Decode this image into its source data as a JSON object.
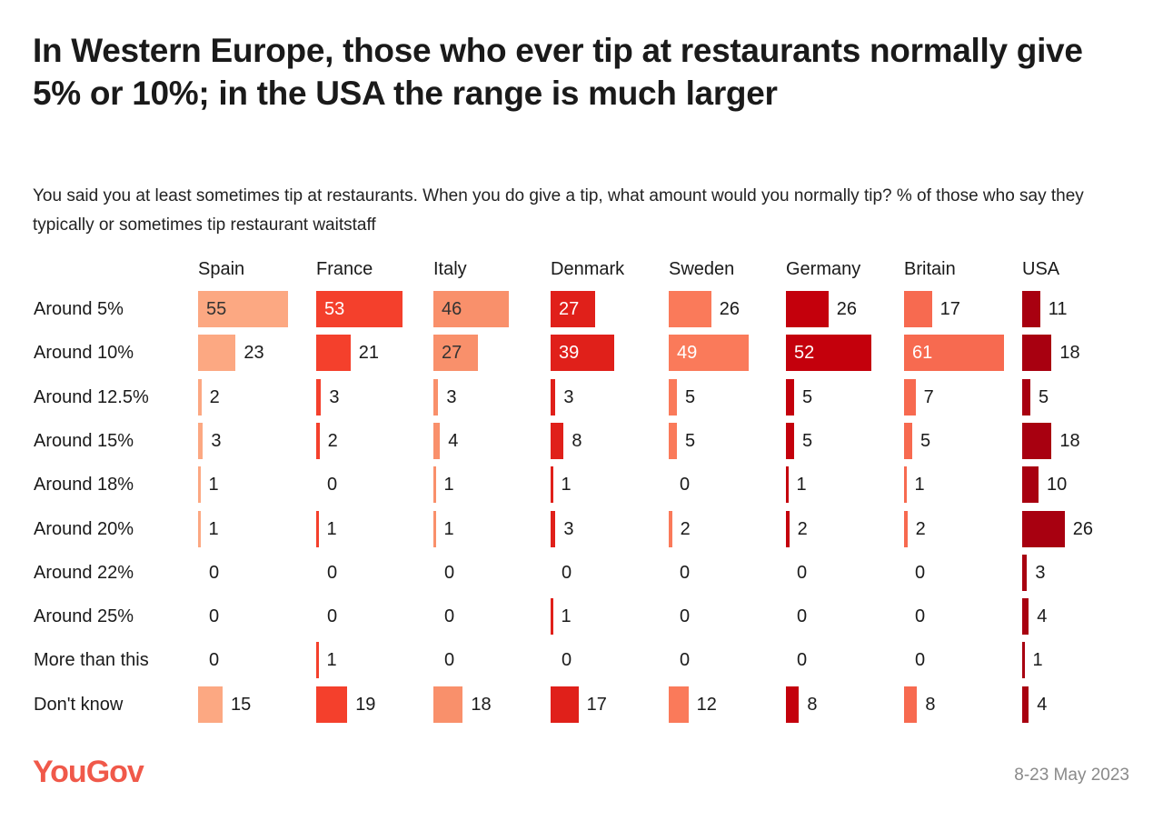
{
  "chart_data": {
    "type": "bar",
    "title": "In Western Europe, those who ever tip at restaurants normally give 5% or 10%; in the USA the range is much larger",
    "subtitle": "You said you at least sometimes tip at restaurants. When you do give a tip, what amount would you normally tip? % of those who say they typically or sometimes tip restaurant waitstaff",
    "categories": [
      "Around 5%",
      "Around 10%",
      "Around 12.5%",
      "Around 15%",
      "Around 18%",
      "Around 20%",
      "Around 22%",
      "Around 25%",
      "More than this",
      "Don't know"
    ],
    "series": [
      {
        "name": "Spain",
        "color": "#fca882",
        "text_inside": "#333333",
        "values": [
          55,
          23,
          2,
          3,
          1,
          1,
          0,
          0,
          0,
          15
        ]
      },
      {
        "name": "France",
        "color": "#f4402c",
        "text_inside": "#ffffff",
        "values": [
          53,
          21,
          3,
          2,
          0,
          1,
          0,
          0,
          1,
          19
        ]
      },
      {
        "name": "Italy",
        "color": "#f9906b",
        "text_inside": "#333333",
        "values": [
          46,
          27,
          3,
          4,
          1,
          1,
          0,
          0,
          0,
          18
        ]
      },
      {
        "name": "Denmark",
        "color": "#e0201a",
        "text_inside": "#ffffff",
        "values": [
          27,
          39,
          3,
          8,
          1,
          3,
          0,
          1,
          0,
          17
        ]
      },
      {
        "name": "Sweden",
        "color": "#fa7a5a",
        "text_inside": "#ffffff",
        "values": [
          26,
          49,
          5,
          5,
          0,
          2,
          0,
          0,
          0,
          12
        ]
      },
      {
        "name": "Germany",
        "color": "#c4000c",
        "text_inside": "#ffffff",
        "values": [
          26,
          52,
          5,
          5,
          1,
          2,
          0,
          0,
          0,
          8
        ]
      },
      {
        "name": "Britain",
        "color": "#f76a50",
        "text_inside": "#ffffff",
        "values": [
          17,
          61,
          7,
          5,
          1,
          2,
          0,
          0,
          0,
          8
        ]
      },
      {
        "name": "USA",
        "color": "#a80010",
        "text_inside": "#ffffff",
        "values": [
          11,
          18,
          5,
          18,
          10,
          26,
          3,
          4,
          1,
          4
        ]
      }
    ],
    "xlabel": "",
    "ylabel": "",
    "xlim": [
      0,
      61
    ]
  },
  "footer": {
    "brand": "YouGov",
    "date": "8-23 May 2023"
  }
}
